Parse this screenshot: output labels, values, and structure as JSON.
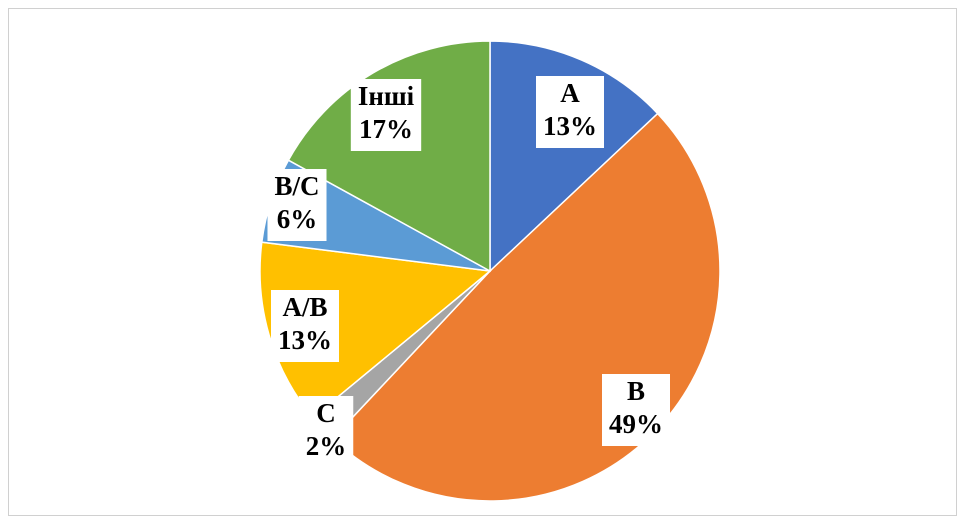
{
  "chart_data": {
    "type": "pie",
    "categories": [
      "A",
      "B",
      "C",
      "A/B",
      "B/C",
      "Інші"
    ],
    "values": [
      13,
      49,
      2,
      13,
      6,
      17
    ],
    "value_labels": [
      "13%",
      "49%",
      "2%",
      "13%",
      "6%",
      "17%"
    ],
    "colors": [
      "#4472c4",
      "#ed7d31",
      "#a5a5a5",
      "#ffc000",
      "#5b9bd5",
      "#70ad47"
    ]
  }
}
